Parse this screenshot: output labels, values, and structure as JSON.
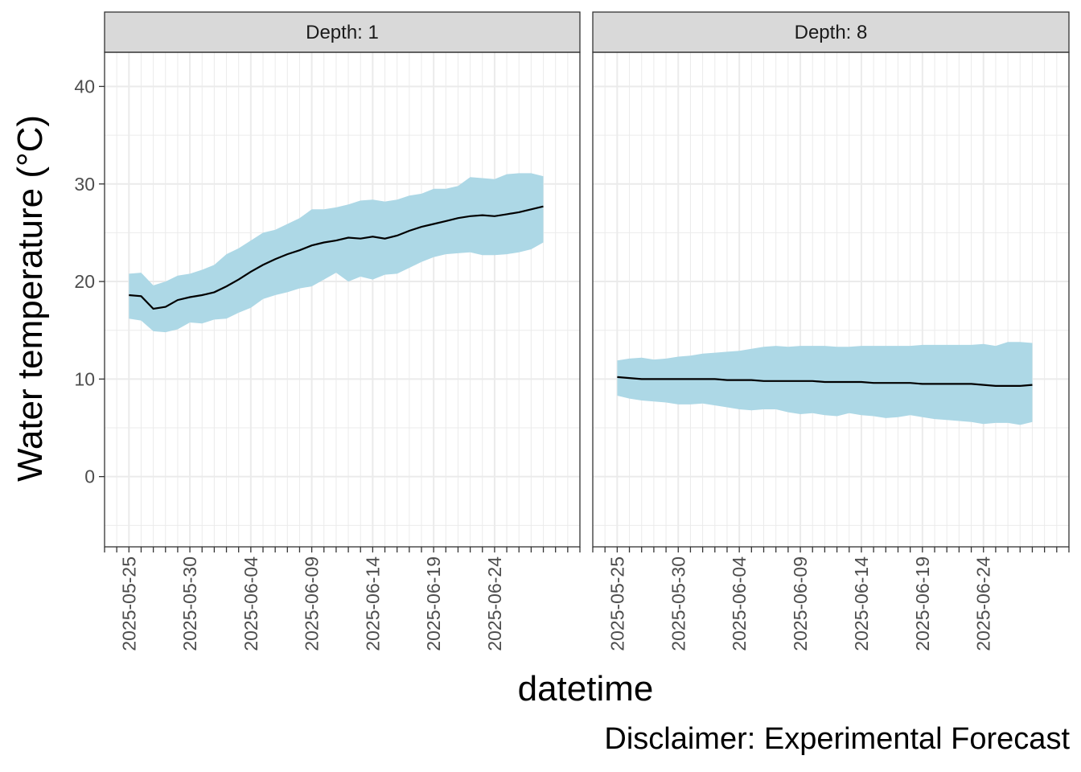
{
  "caption": "Disclaimer: Experimental Forecast",
  "chart_data": {
    "type": "area",
    "xlabel": "datetime",
    "ylabel": "Water temperature (°C)",
    "ylim": [
      -7.2,
      43.5
    ],
    "y_ticks": [
      0,
      10,
      20,
      30,
      40
    ],
    "x_range": [
      "2025-05-23",
      "2025-07-01"
    ],
    "x_tick_labels": [
      "2025-05-25",
      "2025-05-30",
      "2025-06-04",
      "2025-06-09",
      "2025-06-14",
      "2025-06-19",
      "2025-06-24"
    ],
    "grid": true,
    "ribbon_color": "#add8e6",
    "line_color": "#000000",
    "facets": [
      {
        "strip_label": "Depth: 1",
        "x": [
          "2025-05-25",
          "2025-05-26",
          "2025-05-27",
          "2025-05-28",
          "2025-05-29",
          "2025-05-30",
          "2025-05-31",
          "2025-06-01",
          "2025-06-02",
          "2025-06-03",
          "2025-06-04",
          "2025-06-05",
          "2025-06-06",
          "2025-06-07",
          "2025-06-08",
          "2025-06-09",
          "2025-06-10",
          "2025-06-11",
          "2025-06-12",
          "2025-06-13",
          "2025-06-14",
          "2025-06-15",
          "2025-06-16",
          "2025-06-17",
          "2025-06-18",
          "2025-06-19",
          "2025-06-20",
          "2025-06-21",
          "2025-06-22",
          "2025-06-23",
          "2025-06-24",
          "2025-06-25",
          "2025-06-26",
          "2025-06-27",
          "2025-06-28"
        ],
        "mean": [
          18.6,
          18.5,
          17.2,
          17.4,
          18.1,
          18.4,
          18.6,
          18.9,
          19.5,
          20.2,
          21.0,
          21.7,
          22.3,
          22.8,
          23.2,
          23.7,
          24.0,
          24.2,
          24.5,
          24.4,
          24.6,
          24.4,
          24.7,
          25.2,
          25.6,
          25.9,
          26.2,
          26.5,
          26.7,
          26.8,
          26.7,
          26.9,
          27.1,
          27.4,
          27.7
        ],
        "upper": [
          20.8,
          20.9,
          19.6,
          20.0,
          20.6,
          20.8,
          21.2,
          21.7,
          22.8,
          23.4,
          24.2,
          25.0,
          25.3,
          25.9,
          26.5,
          27.4,
          27.4,
          27.6,
          27.9,
          28.3,
          28.4,
          28.2,
          28.4,
          28.8,
          29.0,
          29.5,
          29.5,
          29.8,
          30.7,
          30.6,
          30.5,
          31.0,
          31.1,
          31.1,
          30.8
        ],
        "lower": [
          16.2,
          16.0,
          14.9,
          14.8,
          15.1,
          15.8,
          15.7,
          16.1,
          16.2,
          16.8,
          17.3,
          18.2,
          18.6,
          18.9,
          19.3,
          19.5,
          20.2,
          20.9,
          20.0,
          20.5,
          20.2,
          20.7,
          20.8,
          21.4,
          22.0,
          22.5,
          22.8,
          22.9,
          23.0,
          22.7,
          22.7,
          22.8,
          23.0,
          23.3,
          24.0
        ]
      },
      {
        "strip_label": "Depth: 8",
        "x": [
          "2025-05-25",
          "2025-05-26",
          "2025-05-27",
          "2025-05-28",
          "2025-05-29",
          "2025-05-30",
          "2025-05-31",
          "2025-06-01",
          "2025-06-02",
          "2025-06-03",
          "2025-06-04",
          "2025-06-05",
          "2025-06-06",
          "2025-06-07",
          "2025-06-08",
          "2025-06-09",
          "2025-06-10",
          "2025-06-11",
          "2025-06-12",
          "2025-06-13",
          "2025-06-14",
          "2025-06-15",
          "2025-06-16",
          "2025-06-17",
          "2025-06-18",
          "2025-06-19",
          "2025-06-20",
          "2025-06-21",
          "2025-06-22",
          "2025-06-23",
          "2025-06-24",
          "2025-06-25",
          "2025-06-26",
          "2025-06-27",
          "2025-06-28"
        ],
        "mean": [
          10.2,
          10.1,
          10.0,
          10.0,
          10.0,
          10.0,
          10.0,
          10.0,
          10.0,
          9.9,
          9.9,
          9.9,
          9.8,
          9.8,
          9.8,
          9.8,
          9.8,
          9.7,
          9.7,
          9.7,
          9.7,
          9.6,
          9.6,
          9.6,
          9.6,
          9.5,
          9.5,
          9.5,
          9.5,
          9.5,
          9.4,
          9.3,
          9.3,
          9.3,
          9.4
        ],
        "upper": [
          11.9,
          12.1,
          12.2,
          12.0,
          12.1,
          12.3,
          12.4,
          12.6,
          12.7,
          12.8,
          12.9,
          13.1,
          13.3,
          13.4,
          13.3,
          13.4,
          13.4,
          13.4,
          13.3,
          13.3,
          13.4,
          13.4,
          13.4,
          13.4,
          13.4,
          13.5,
          13.5,
          13.5,
          13.5,
          13.5,
          13.6,
          13.4,
          13.8,
          13.8,
          13.7
        ],
        "lower": [
          8.3,
          8.0,
          7.8,
          7.7,
          7.6,
          7.4,
          7.4,
          7.5,
          7.3,
          7.1,
          6.9,
          6.8,
          6.9,
          6.9,
          6.6,
          6.4,
          6.5,
          6.3,
          6.2,
          6.5,
          6.3,
          6.2,
          6.0,
          6.1,
          6.3,
          6.1,
          5.9,
          5.8,
          5.7,
          5.6,
          5.4,
          5.5,
          5.5,
          5.3,
          5.6
        ]
      }
    ]
  }
}
